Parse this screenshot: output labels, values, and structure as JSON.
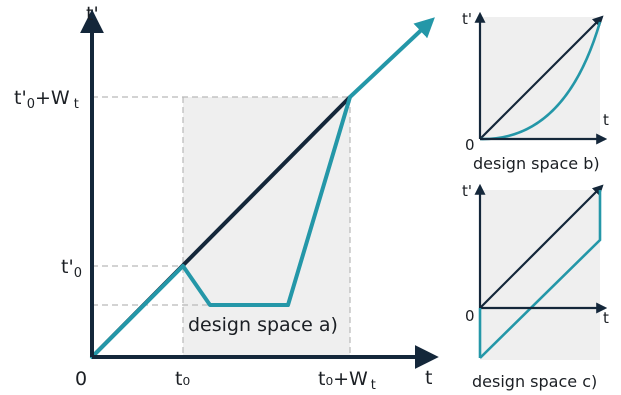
{
  "colors": {
    "axis": "#14273a",
    "teal": "#2497a8",
    "design_space_fill": "#efefef",
    "guide": "#b9b9b9",
    "text": "#1b1f24"
  },
  "main": {
    "y_axis_label": "t'",
    "x_axis_label": "t",
    "origin_label": "0",
    "tick_t0": "t₀",
    "tick_t0_plus_wt": "t₀+W",
    "tick_t0_plus_wt_sub": "t",
    "tick_tp0_prefix": "t'",
    "tick_tp0_sub": "0",
    "tick_top_prefix": "t'",
    "tick_top_sub": "0",
    "tick_top_suffix": "+W",
    "tick_top_suffix_sub": "t",
    "design_space_label": "design space a)"
  },
  "panel_b": {
    "y_axis_label": "t'",
    "x_axis_label": "t",
    "origin_label": "0",
    "design_space_label": "design space b)"
  },
  "panel_c": {
    "y_axis_label": "t'",
    "x_axis_label": "t",
    "origin_label": "0",
    "design_space_label": "design space c)"
  }
}
